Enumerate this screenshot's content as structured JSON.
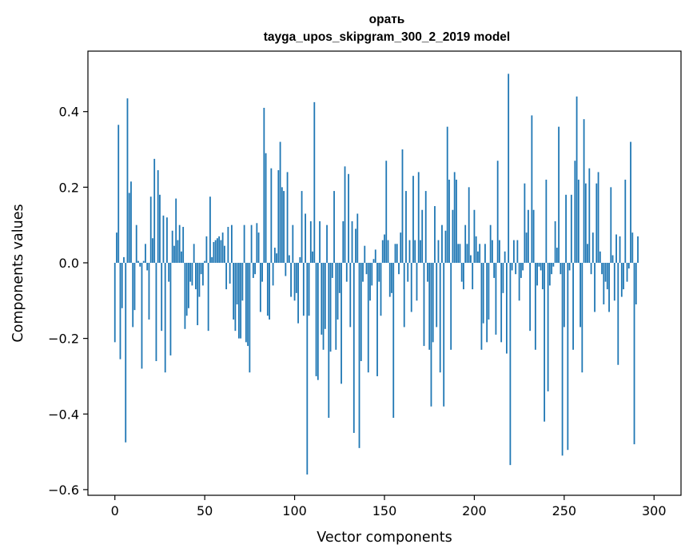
{
  "chart_data": {
    "type": "bar",
    "title": "орать",
    "subtitle": "tayga_upos_skipgram_300_2_2019 model",
    "xlabel": "Vector components",
    "ylabel": "Components values",
    "xlim": [
      -15,
      315
    ],
    "ylim": [
      -0.615,
      0.56
    ],
    "xticks": [
      0,
      50,
      100,
      150,
      200,
      250,
      300
    ],
    "xtick_labels": [
      "0",
      "50",
      "100",
      "150",
      "200",
      "250",
      "300"
    ],
    "yticks": [
      -0.6,
      -0.4,
      -0.2,
      0.0,
      0.2,
      0.4
    ],
    "ytick_labels": [
      "−0.6",
      "−0.4",
      "−0.2",
      "0.0",
      "0.2",
      "0.4"
    ],
    "bar_color": "#1f77b4",
    "grid": false,
    "values": [
      -0.21,
      0.08,
      0.365,
      -0.255,
      -0.12,
      0.015,
      -0.475,
      0.435,
      0.185,
      0.215,
      -0.17,
      -0.125,
      0.1,
      0.005,
      -0.01,
      -0.28,
      0.005,
      0.05,
      -0.02,
      -0.15,
      0.175,
      0.065,
      0.275,
      -0.26,
      0.245,
      0.18,
      -0.18,
      0.125,
      -0.29,
      0.12,
      -0.05,
      -0.245,
      0.085,
      0.045,
      0.17,
      0.06,
      0.1,
      0.03,
      0.095,
      -0.175,
      -0.14,
      -0.12,
      -0.05,
      -0.06,
      0.05,
      -0.07,
      -0.165,
      -0.09,
      -0.03,
      -0.06,
      0.005,
      0.07,
      -0.18,
      0.175,
      0.015,
      0.055,
      0.06,
      0.065,
      0.07,
      0.06,
      0.08,
      0.045,
      -0.07,
      0.095,
      -0.055,
      0.1,
      -0.15,
      -0.18,
      -0.11,
      -0.2,
      -0.2,
      -0.1,
      0.1,
      -0.21,
      -0.22,
      -0.29,
      0.1,
      -0.04,
      -0.03,
      0.105,
      0.08,
      -0.13,
      -0.05,
      0.41,
      0.29,
      -0.14,
      -0.15,
      0.25,
      -0.06,
      0.04,
      0.025,
      0.245,
      0.32,
      0.2,
      0.19,
      -0.035,
      0.24,
      0.02,
      -0.09,
      0.1,
      -0.1,
      -0.08,
      -0.16,
      0.015,
      0.19,
      -0.14,
      0.13,
      -0.56,
      -0.14,
      0.11,
      0.03,
      0.425,
      -0.3,
      -0.31,
      0.11,
      -0.19,
      -0.23,
      -0.175,
      0.1,
      -0.41,
      -0.235,
      -0.04,
      0.19,
      -0.23,
      -0.15,
      -0.08,
      -0.32,
      0.11,
      0.255,
      -0.05,
      0.235,
      -0.17,
      0.11,
      -0.45,
      0.09,
      0.13,
      -0.49,
      -0.26,
      -0.05,
      0.045,
      -0.03,
      -0.29,
      -0.1,
      -0.06,
      0.01,
      0.035,
      -0.3,
      -0.05,
      -0.14,
      0.06,
      0.075,
      0.27,
      0.06,
      -0.09,
      -0.08,
      -0.41,
      0.05,
      0.05,
      -0.03,
      0.08,
      0.3,
      -0.17,
      0.19,
      -0.05,
      0.06,
      -0.13,
      0.23,
      0.06,
      -0.1,
      0.24,
      0.06,
      0.14,
      -0.22,
      0.19,
      -0.05,
      -0.23,
      -0.38,
      -0.21,
      0.15,
      -0.17,
      0.06,
      -0.29,
      0.1,
      -0.38,
      0.085,
      0.36,
      0.22,
      -0.23,
      0.14,
      0.24,
      0.22,
      0.05,
      0.05,
      -0.05,
      -0.07,
      0.1,
      0.05,
      0.2,
      0.02,
      -0.07,
      0.14,
      0.07,
      0.03,
      0.05,
      -0.23,
      -0.16,
      0.05,
      -0.21,
      -0.15,
      0.1,
      0.06,
      -0.04,
      -0.19,
      0.27,
      0.06,
      -0.21,
      -0.08,
      0.03,
      -0.24,
      0.5,
      -0.535,
      -0.02,
      0.06,
      -0.03,
      0.06,
      -0.1,
      -0.04,
      -0.02,
      0.21,
      0.08,
      0.14,
      -0.18,
      0.39,
      0.14,
      -0.23,
      -0.06,
      -0.01,
      -0.02,
      -0.07,
      -0.42,
      0.22,
      -0.34,
      -0.06,
      -0.03,
      -0.01,
      0.11,
      0.04,
      0.36,
      -0.03,
      -0.51,
      -0.17,
      0.18,
      -0.495,
      -0.02,
      0.18,
      -0.23,
      0.27,
      0.44,
      0.22,
      -0.17,
      -0.29,
      0.38,
      0.21,
      0.05,
      0.25,
      -0.03,
      0.08,
      -0.13,
      0.21,
      0.24,
      0.03,
      -0.03,
      -0.11,
      -0.05,
      -0.07,
      -0.13,
      0.2,
      0.02,
      -0.1,
      0.075,
      -0.27,
      0.07,
      -0.09,
      -0.07,
      0.22,
      -0.05,
      -0.015,
      0.32,
      0.08,
      -0.48,
      -0.11,
      0.07
    ]
  }
}
